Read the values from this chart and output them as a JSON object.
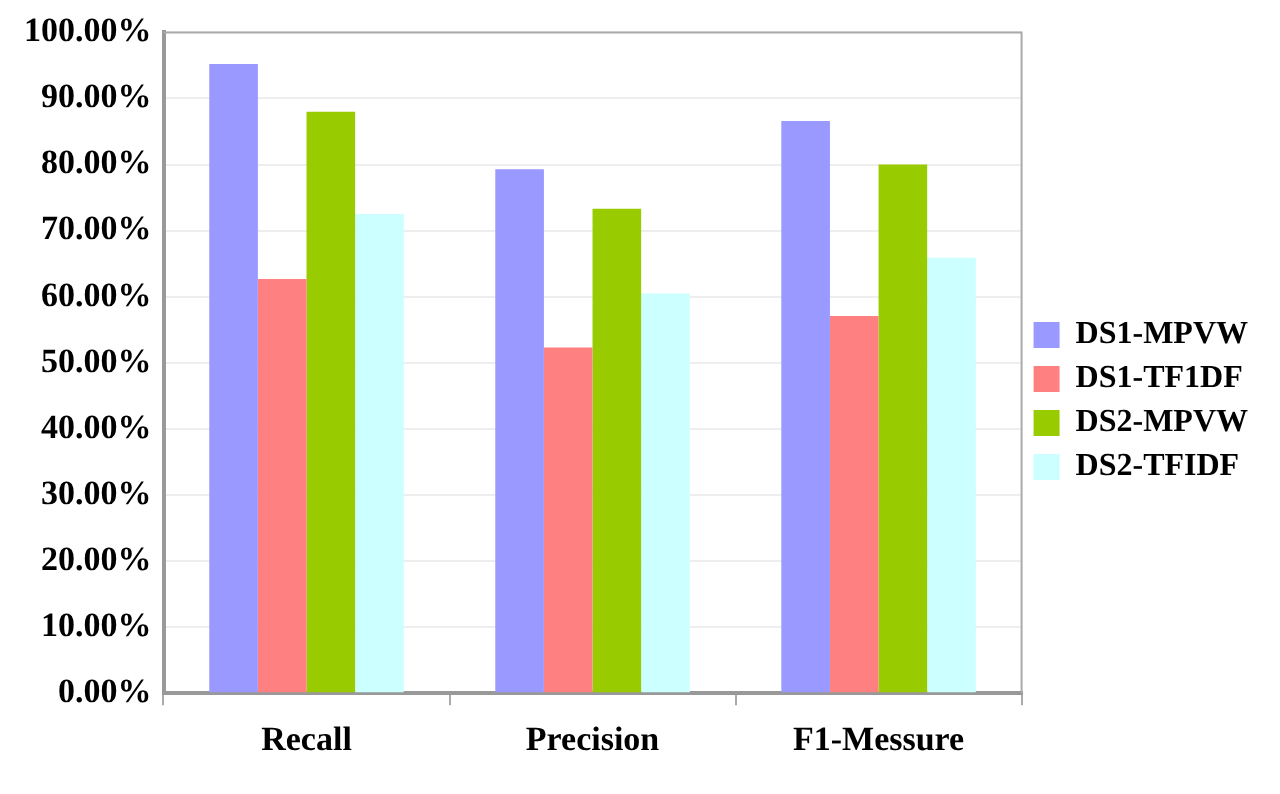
{
  "chart_data": {
    "type": "bar",
    "categories": [
      "Recall",
      "Precision",
      "F1-Messure"
    ],
    "series": [
      {
        "name": "DS1-MPVW",
        "color": "#9999ff",
        "values": [
          95.2,
          79.3,
          86.6
        ]
      },
      {
        "name": "DS1-TF1DF",
        "color": "#ff8080",
        "values": [
          62.7,
          52.3,
          57.1
        ]
      },
      {
        "name": "DS2-MPVW",
        "color": "#99cc00",
        "values": [
          88.0,
          73.3,
          80.0
        ]
      },
      {
        "name": "DS2-TFIDF",
        "color": "#ccffff",
        "values": [
          72.5,
          60.5,
          65.9
        ]
      }
    ],
    "ylim": [
      0,
      100
    ],
    "yticks": [
      {
        "value": 0,
        "label": "0.00%"
      },
      {
        "value": 10,
        "label": "10.00%"
      },
      {
        "value": 20,
        "label": "20.00%"
      },
      {
        "value": 30,
        "label": "30.00%"
      },
      {
        "value": 40,
        "label": "40.00%"
      },
      {
        "value": 50,
        "label": "50.00%"
      },
      {
        "value": 60,
        "label": "60.00%"
      },
      {
        "value": 70,
        "label": "70.00%"
      },
      {
        "value": 80,
        "label": "80.00%"
      },
      {
        "value": 90,
        "label": "90.00%"
      },
      {
        "value": 100,
        "label": "100.00%"
      }
    ],
    "grid": "y",
    "legend": "right"
  }
}
